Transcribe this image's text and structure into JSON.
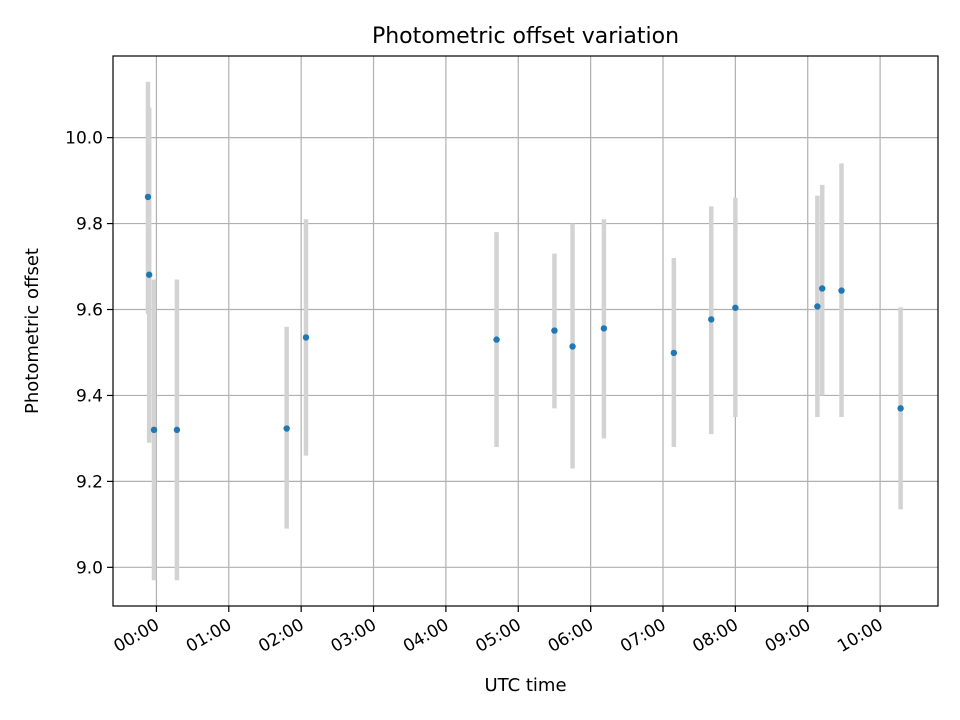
{
  "chart_data": {
    "type": "scatter",
    "title": "Photometric offset variation",
    "xlabel": "UTC time",
    "ylabel": "Photometric offset",
    "x_tick_labels": [
      "00:00",
      "01:00",
      "02:00",
      "03:00",
      "04:00",
      "05:00",
      "06:00",
      "07:00",
      "08:00",
      "09:00",
      "10:00"
    ],
    "x_ticks_hours": [
      0,
      1,
      2,
      3,
      4,
      5,
      6,
      7,
      8,
      9,
      10
    ],
    "y_tick_labels": [
      "9.0",
      "9.2",
      "9.4",
      "9.6",
      "9.8",
      "10.0"
    ],
    "y_ticks": [
      9.0,
      9.2,
      9.4,
      9.6,
      9.8,
      10.0
    ],
    "xlim_hours": [
      -0.6,
      10.8
    ],
    "ylim": [
      8.91,
      10.19
    ],
    "grid": true,
    "marker_color": "#1f77b4",
    "errorbar_color": "#d3d3d3",
    "points": [
      {
        "t": "23:53",
        "y": 9.862,
        "ylo": 9.59,
        "yhi": 10.13
      },
      {
        "t": "23:54",
        "y": 9.681,
        "ylo": 9.29,
        "yhi": 10.07
      },
      {
        "t": "23:58",
        "y": 9.32,
        "ylo": 8.97,
        "yhi": 9.67
      },
      {
        "t": "00:17",
        "y": 9.32,
        "ylo": 8.97,
        "yhi": 9.67
      },
      {
        "t": "01:48",
        "y": 9.323,
        "ylo": 9.09,
        "yhi": 9.56
      },
      {
        "t": "02:04",
        "y": 9.535,
        "ylo": 9.26,
        "yhi": 9.81
      },
      {
        "t": "04:42",
        "y": 9.53,
        "ylo": 9.28,
        "yhi": 9.78
      },
      {
        "t": "05:30",
        "y": 9.551,
        "ylo": 9.37,
        "yhi": 9.73
      },
      {
        "t": "05:45",
        "y": 9.514,
        "ylo": 9.23,
        "yhi": 9.8
      },
      {
        "t": "06:11",
        "y": 9.556,
        "ylo": 9.3,
        "yhi": 9.81
      },
      {
        "t": "07:09",
        "y": 9.499,
        "ylo": 9.28,
        "yhi": 9.72
      },
      {
        "t": "07:40",
        "y": 9.577,
        "ylo": 9.31,
        "yhi": 9.84
      },
      {
        "t": "08:00",
        "y": 9.604,
        "ylo": 9.35,
        "yhi": 9.86
      },
      {
        "t": "09:08",
        "y": 9.607,
        "ylo": 9.35,
        "yhi": 9.865
      },
      {
        "t": "09:12",
        "y": 9.649,
        "ylo": 9.4,
        "yhi": 9.89
      },
      {
        "t": "09:28",
        "y": 9.644,
        "ylo": 9.35,
        "yhi": 9.94
      },
      {
        "t": "10:17",
        "y": 9.37,
        "ylo": 9.135,
        "yhi": 9.605
      }
    ]
  }
}
